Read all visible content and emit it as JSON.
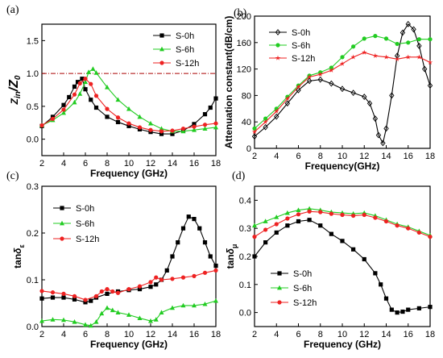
{
  "chart_data": [
    {
      "type": "line",
      "panel_label": "(a)",
      "xlabel": "Frequency (GHz)",
      "ylabel_main": "Z",
      "ylabel_sub1": "in",
      "ylabel_mid": "/Z",
      "ylabel_sub2": "0",
      "xlim": [
        2,
        18
      ],
      "ylim": [
        -0.25,
        1.75
      ],
      "xticks": [
        "2",
        "4",
        "6",
        "8",
        "10",
        "12",
        "14",
        "16",
        "18"
      ],
      "yticks": [
        "0.0",
        "0.5",
        "1.0",
        "1.5"
      ],
      "legend_position": "top-right",
      "reference_line": 1.0,
      "series": [
        {
          "name": "S-0h",
          "color": "#000000",
          "marker": "square",
          "x": [
            2,
            3,
            4,
            4.5,
            5,
            5.3,
            5.7,
            6,
            6.5,
            7,
            8,
            9,
            10,
            11,
            12,
            13,
            14,
            15,
            16,
            17,
            17.5,
            18
          ],
          "y": [
            0.2,
            0.34,
            0.52,
            0.64,
            0.8,
            0.87,
            0.92,
            0.76,
            0.6,
            0.48,
            0.34,
            0.26,
            0.2,
            0.15,
            0.11,
            0.08,
            0.08,
            0.13,
            0.23,
            0.38,
            0.48,
            0.62
          ]
        },
        {
          "name": "S-6h",
          "color": "#22cc22",
          "marker": "triangle",
          "x": [
            2,
            3,
            4,
            5,
            5.5,
            6,
            6.3,
            6.7,
            7,
            8,
            9,
            10,
            11,
            12,
            13,
            14,
            15,
            16,
            17,
            18
          ],
          "y": [
            0.21,
            0.29,
            0.4,
            0.56,
            0.69,
            0.87,
            1.02,
            1.07,
            1.01,
            0.79,
            0.6,
            0.46,
            0.34,
            0.24,
            0.16,
            0.12,
            0.12,
            0.14,
            0.16,
            0.18
          ]
        },
        {
          "name": "S-12h",
          "color": "#ee2222",
          "marker": "circle",
          "x": [
            2,
            3,
            4,
            5,
            5.5,
            6,
            6.5,
            7,
            8,
            9,
            10,
            11,
            12,
            13,
            14,
            15,
            16,
            17,
            18
          ],
          "y": [
            0.21,
            0.31,
            0.45,
            0.68,
            0.85,
            0.92,
            0.84,
            0.66,
            0.46,
            0.33,
            0.24,
            0.18,
            0.14,
            0.12,
            0.13,
            0.16,
            0.19,
            0.22,
            0.24
          ]
        }
      ]
    },
    {
      "type": "line",
      "panel_label": "(b)",
      "xlabel": "Frequency(GHz)",
      "ylabel": "Attenuation constant(dB/cm)",
      "xlim": [
        2,
        18
      ],
      "ylim": [
        0,
        200
      ],
      "xticks": [
        "2",
        "4",
        "6",
        "8",
        "10",
        "12",
        "14",
        "16",
        "18"
      ],
      "yticks": [
        "0",
        "40",
        "80",
        "120",
        "160",
        "200"
      ],
      "legend_position": "top-left",
      "series": [
        {
          "name": "S-0h",
          "color": "#000000",
          "marker": "diamond",
          "x": [
            2,
            3,
            4,
            5,
            6,
            7,
            8,
            9,
            10,
            11,
            12,
            12.5,
            13,
            13.3,
            13.7,
            14,
            14.5,
            15,
            15.5,
            16,
            16.5,
            17,
            17.5,
            18
          ],
          "y": [
            18,
            32,
            48,
            68,
            88,
            102,
            104,
            98,
            90,
            84,
            78,
            68,
            45,
            20,
            8,
            30,
            80,
            140,
            175,
            188,
            180,
            155,
            120,
            95
          ]
        },
        {
          "name": "S-6h",
          "color": "#22cc22",
          "marker": "circle",
          "x": [
            2,
            3,
            4,
            5,
            6,
            7,
            8,
            9,
            10,
            11,
            12,
            13,
            14,
            15,
            16,
            17,
            18
          ],
          "y": [
            30,
            45,
            60,
            78,
            95,
            110,
            115,
            122,
            138,
            154,
            166,
            170,
            166,
            158,
            160,
            165,
            165
          ]
        },
        {
          "name": "S-12h",
          "color": "#ee2222",
          "marker": "star",
          "x": [
            2,
            3,
            4,
            5,
            6,
            7,
            8,
            9,
            10,
            11,
            12,
            13,
            14,
            15,
            16,
            17,
            18
          ],
          "y": [
            25,
            40,
            56,
            75,
            93,
            108,
            112,
            118,
            128,
            138,
            145,
            140,
            138,
            135,
            138,
            138,
            130
          ]
        }
      ]
    },
    {
      "type": "line",
      "panel_label": "(c)",
      "xlabel": "Frequency (GHz)",
      "ylabel_main": "tan",
      "ylabel_sym": "δ",
      "ylabel_sub": "ε",
      "xlim": [
        2,
        18
      ],
      "ylim": [
        0,
        0.3
      ],
      "xticks": [
        "2",
        "4",
        "6",
        "8",
        "10",
        "12",
        "14",
        "16",
        "18"
      ],
      "yticks": [
        "0.0",
        "0.1",
        "0.2",
        "0.3"
      ],
      "legend_position": "top-left",
      "series": [
        {
          "name": "S-0h",
          "color": "#000000",
          "marker": "square",
          "x": [
            2,
            3,
            4,
            5,
            6,
            6.5,
            7,
            8,
            9,
            10,
            11,
            12,
            12.5,
            13,
            13.5,
            14,
            14.5,
            15,
            15.5,
            16,
            16.5,
            17,
            17.5,
            18
          ],
          "y": [
            0.06,
            0.062,
            0.062,
            0.058,
            0.052,
            0.055,
            0.062,
            0.07,
            0.075,
            0.078,
            0.08,
            0.085,
            0.09,
            0.1,
            0.12,
            0.15,
            0.18,
            0.21,
            0.235,
            0.23,
            0.21,
            0.18,
            0.15,
            0.13
          ]
        },
        {
          "name": "S-6h",
          "color": "#22cc22",
          "marker": "triangle",
          "x": [
            2,
            3,
            4,
            5,
            6,
            6.5,
            7,
            7.5,
            8,
            8.5,
            9,
            10,
            11,
            12,
            12.5,
            13,
            14,
            15,
            16,
            17,
            18
          ],
          "y": [
            0.012,
            0.015,
            0.014,
            0.01,
            0.004,
            0.002,
            0.01,
            0.028,
            0.04,
            0.035,
            0.03,
            0.025,
            0.018,
            0.012,
            0.015,
            0.03,
            0.04,
            0.045,
            0.045,
            0.048,
            0.055
          ]
        },
        {
          "name": "S-12h",
          "color": "#ee2222",
          "marker": "circle",
          "x": [
            2,
            3,
            4,
            5,
            6,
            7,
            7.5,
            8,
            8.5,
            9,
            10,
            11,
            12,
            12.5,
            13,
            14,
            15,
            16,
            17,
            18
          ],
          "y": [
            0.076,
            0.073,
            0.07,
            0.065,
            0.057,
            0.065,
            0.075,
            0.08,
            0.075,
            0.072,
            0.08,
            0.086,
            0.095,
            0.105,
            0.1,
            0.102,
            0.105,
            0.108,
            0.115,
            0.12
          ]
        }
      ]
    },
    {
      "type": "line",
      "panel_label": "(d)",
      "xlabel": "Frequency (GHz)",
      "ylabel_main": "tan",
      "ylabel_sym": "δ",
      "ylabel_sub": "μ",
      "xlim": [
        2,
        18
      ],
      "ylim": [
        -0.05,
        0.45
      ],
      "xticks": [
        "2",
        "4",
        "6",
        "8",
        "10",
        "12",
        "14",
        "16",
        "18"
      ],
      "yticks": [
        "0.0",
        "0.1",
        "0.2",
        "0.3",
        "0.4"
      ],
      "legend_position": "bottom-left",
      "series": [
        {
          "name": "S-0h",
          "color": "#000000",
          "marker": "square",
          "x": [
            2,
            3,
            4,
            5,
            6,
            7,
            8,
            9,
            10,
            11,
            12,
            13,
            13.5,
            14,
            14.5,
            15,
            15.5,
            16,
            17,
            18
          ],
          "y": [
            0.2,
            0.25,
            0.285,
            0.31,
            0.325,
            0.33,
            0.31,
            0.28,
            0.255,
            0.225,
            0.19,
            0.14,
            0.1,
            0.05,
            0.01,
            0,
            0.003,
            0.01,
            0.015,
            0.02
          ]
        },
        {
          "name": "S-6h",
          "color": "#22cc22",
          "marker": "triangle",
          "x": [
            2,
            3,
            4,
            5,
            6,
            7,
            8,
            9,
            10,
            11,
            12,
            13,
            14,
            15,
            16,
            17,
            18
          ],
          "y": [
            0.31,
            0.325,
            0.34,
            0.355,
            0.365,
            0.37,
            0.365,
            0.358,
            0.355,
            0.352,
            0.355,
            0.345,
            0.33,
            0.315,
            0.305,
            0.29,
            0.275
          ]
        },
        {
          "name": "S-12h",
          "color": "#ee2222",
          "marker": "circle",
          "x": [
            2,
            3,
            4,
            5,
            6,
            7,
            8,
            9,
            10,
            11,
            12,
            13,
            14,
            15,
            16,
            17,
            18
          ],
          "y": [
            0.27,
            0.295,
            0.315,
            0.335,
            0.35,
            0.36,
            0.358,
            0.352,
            0.348,
            0.345,
            0.348,
            0.338,
            0.325,
            0.31,
            0.3,
            0.285,
            0.27
          ]
        }
      ]
    }
  ]
}
